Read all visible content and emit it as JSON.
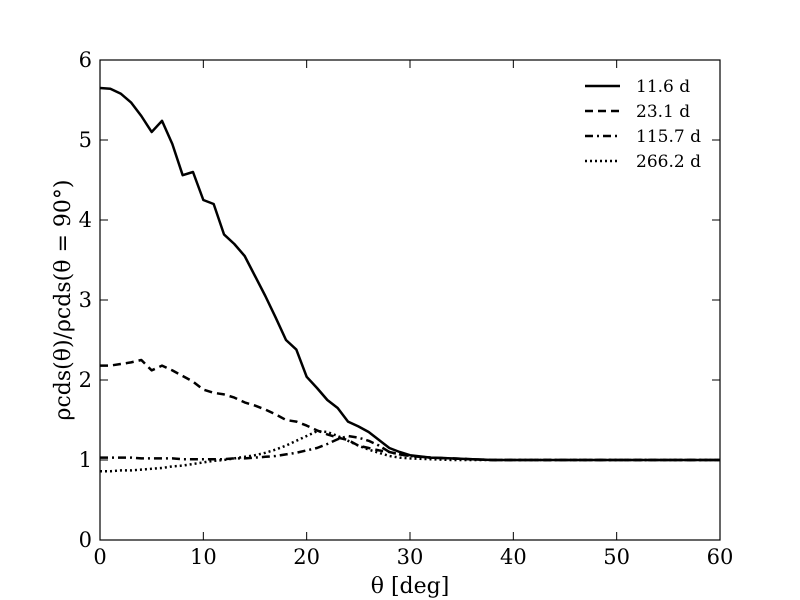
{
  "chart_data": {
    "type": "line",
    "xlabel": "θ [deg]",
    "ylabel": "ρcds(θ)/ρcds(θ = 90°)",
    "xlim": [
      0,
      60
    ],
    "ylim": [
      0,
      6
    ],
    "xticks": [
      0,
      10,
      20,
      30,
      40,
      50,
      60
    ],
    "yticks": [
      0,
      1,
      2,
      3,
      4,
      5,
      6
    ],
    "xtick_labels": [
      "0",
      "10",
      "20",
      "30",
      "40",
      "50",
      "60"
    ],
    "ytick_labels": [
      "0",
      "1",
      "2",
      "3",
      "4",
      "5",
      "6"
    ],
    "grid": false,
    "legend_position": "top-right",
    "series": [
      {
        "name": "11.6 d",
        "style": "solid",
        "color": "#000000",
        "x": [
          0,
          1,
          2,
          3,
          4,
          5,
          6,
          7,
          8,
          9,
          10,
          11,
          12,
          13,
          14,
          15,
          16,
          17,
          18,
          19,
          20,
          21,
          22,
          23,
          24,
          25,
          26,
          27,
          28,
          29,
          30,
          32,
          34,
          36,
          38,
          40,
          45,
          50,
          55,
          60
        ],
        "y": [
          5.65,
          5.64,
          5.58,
          5.47,
          5.3,
          5.1,
          5.24,
          4.95,
          4.56,
          4.6,
          4.25,
          4.2,
          3.82,
          3.7,
          3.55,
          3.3,
          3.05,
          2.78,
          2.5,
          2.38,
          2.04,
          1.9,
          1.75,
          1.65,
          1.48,
          1.42,
          1.35,
          1.25,
          1.15,
          1.1,
          1.06,
          1.03,
          1.02,
          1.01,
          1.0,
          1.0,
          1.0,
          1.0,
          1.0,
          1.0
        ]
      },
      {
        "name": "23.1 d",
        "style": "dashed",
        "color": "#000000",
        "x": [
          0,
          1,
          2,
          3,
          4,
          5,
          6,
          7,
          8,
          9,
          10,
          11,
          12,
          13,
          14,
          15,
          16,
          17,
          18,
          19,
          20,
          21,
          22,
          23,
          24,
          25,
          26,
          27,
          28,
          29,
          30,
          32,
          34,
          36,
          38,
          40,
          45,
          50,
          55,
          60
        ],
        "y": [
          2.18,
          2.18,
          2.2,
          2.22,
          2.25,
          2.12,
          2.18,
          2.12,
          2.05,
          1.98,
          1.88,
          1.84,
          1.82,
          1.78,
          1.72,
          1.68,
          1.63,
          1.57,
          1.5,
          1.48,
          1.43,
          1.37,
          1.32,
          1.28,
          1.25,
          1.18,
          1.15,
          1.12,
          1.1,
          1.07,
          1.05,
          1.03,
          1.02,
          1.01,
          1.0,
          1.0,
          1.0,
          1.0,
          1.0,
          1.0
        ]
      },
      {
        "name": "115.7 d",
        "style": "dashdot",
        "color": "#000000",
        "x": [
          0,
          1,
          2,
          3,
          4,
          5,
          6,
          7,
          8,
          9,
          10,
          11,
          12,
          13,
          14,
          15,
          16,
          17,
          18,
          19,
          20,
          21,
          22,
          23,
          24,
          25,
          26,
          27,
          28,
          29,
          30,
          32,
          34,
          36,
          38,
          40,
          45,
          50,
          55,
          60
        ],
        "y": [
          1.03,
          1.03,
          1.03,
          1.03,
          1.02,
          1.02,
          1.02,
          1.02,
          1.01,
          1.01,
          1.01,
          1.01,
          1.01,
          1.02,
          1.02,
          1.03,
          1.04,
          1.05,
          1.07,
          1.09,
          1.12,
          1.15,
          1.2,
          1.26,
          1.3,
          1.28,
          1.24,
          1.18,
          1.1,
          1.07,
          1.05,
          1.03,
          1.02,
          1.01,
          1.0,
          1.0,
          1.0,
          1.0,
          1.0,
          1.0
        ]
      },
      {
        "name": "266.2 d",
        "style": "dotted",
        "color": "#000000",
        "x": [
          0,
          1,
          2,
          3,
          4,
          5,
          6,
          7,
          8,
          9,
          10,
          11,
          12,
          13,
          14,
          15,
          16,
          17,
          18,
          19,
          20,
          21,
          22,
          23,
          24,
          25,
          26,
          27,
          28,
          29,
          30,
          32,
          34,
          36,
          38,
          40,
          45,
          50,
          55,
          60
        ],
        "y": [
          0.86,
          0.86,
          0.87,
          0.87,
          0.88,
          0.89,
          0.9,
          0.92,
          0.93,
          0.95,
          0.97,
          0.99,
          1.0,
          1.02,
          1.04,
          1.06,
          1.09,
          1.13,
          1.18,
          1.24,
          1.3,
          1.36,
          1.35,
          1.3,
          1.24,
          1.18,
          1.13,
          1.09,
          1.05,
          1.03,
          1.02,
          1.01,
          1.0,
          1.0,
          1.0,
          1.0,
          1.0,
          1.0,
          1.0,
          1.0
        ]
      }
    ]
  }
}
